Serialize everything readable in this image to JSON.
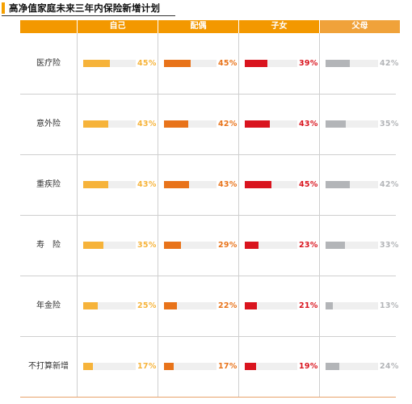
{
  "title": "高净值家庭未来三年内保险新增计划",
  "colors": {
    "header": "#f39800",
    "自己": "#f6b33a",
    "配偶": "#e8731a",
    "子女": "#d9141e",
    "父母": "#b3b5b8"
  },
  "chart_data": {
    "type": "table",
    "title": "高净值家庭未来三年内保险新增计划",
    "columns": [
      "自己",
      "配偶",
      "子女",
      "父母"
    ],
    "rows": [
      {
        "label": "医疗险",
        "values": [
          "45%",
          "45%",
          "39%",
          "42%"
        ],
        "fractions": [
          0.45,
          0.45,
          0.39,
          0.42
        ]
      },
      {
        "label": "意外险",
        "values": [
          "43%",
          "42%",
          "43%",
          "35%"
        ],
        "fractions": [
          0.43,
          0.42,
          0.43,
          0.35
        ]
      },
      {
        "label": "重疾险",
        "values": [
          "43%",
          "43%",
          "45%",
          "42%"
        ],
        "fractions": [
          0.43,
          0.43,
          0.45,
          0.42
        ]
      },
      {
        "label": "寿　险",
        "values": [
          "35%",
          "29%",
          "23%",
          "33%"
        ],
        "fractions": [
          0.35,
          0.29,
          0.23,
          0.33
        ]
      },
      {
        "label": "年金险",
        "values": [
          "25%",
          "22%",
          "21%",
          "13%"
        ],
        "fractions": [
          0.25,
          0.22,
          0.21,
          0.13
        ]
      },
      {
        "label": "不打算新增",
        "values": [
          "17%",
          "17%",
          "19%",
          "24%"
        ],
        "fractions": [
          0.17,
          0.17,
          0.19,
          0.24
        ]
      }
    ]
  }
}
